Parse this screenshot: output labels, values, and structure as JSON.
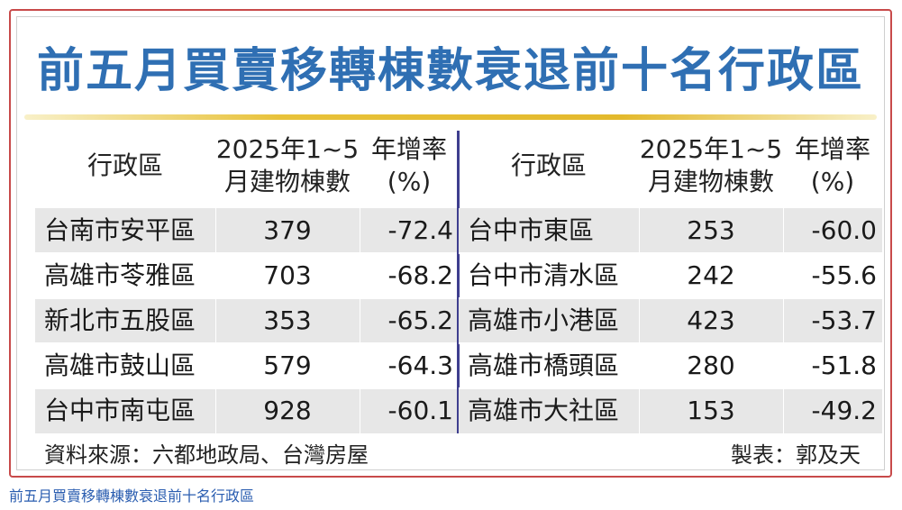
{
  "title": "前五月買賣移轉棟數衰退前十名行政區",
  "headers": {
    "district": "行政區",
    "count_line1": "2025年1~5",
    "count_line2": "月建物棟數",
    "rate_line1": "年增率",
    "rate_line2": "(%)"
  },
  "left_rows": [
    {
      "district": "台南市安平區",
      "count": "379",
      "rate": "-72.4"
    },
    {
      "district": "高雄市苓雅區",
      "count": "703",
      "rate": "-68.2"
    },
    {
      "district": "新北市五股區",
      "count": "353",
      "rate": "-65.2"
    },
    {
      "district": "高雄市鼓山區",
      "count": "579",
      "rate": "-64.3"
    },
    {
      "district": "台中市南屯區",
      "count": "928",
      "rate": "-60.1"
    }
  ],
  "right_rows": [
    {
      "district": "台中市東區",
      "count": "253",
      "rate": "-60.0"
    },
    {
      "district": "台中市清水區",
      "count": "242",
      "rate": "-55.6"
    },
    {
      "district": "高雄市小港區",
      "count": "423",
      "rate": "-53.7"
    },
    {
      "district": "高雄市橋頭區",
      "count": "280",
      "rate": "-51.8"
    },
    {
      "district": "高雄市大社區",
      "count": "153",
      "rate": "-49.2"
    }
  ],
  "footer": {
    "source": "資料來源：六都地政局、台灣房屋",
    "maker": "製表：郭及天"
  },
  "caption": "前五月買賣移轉棟數衰退前十名行政區",
  "colors": {
    "title": "#2f6fb3",
    "frame": "#c84a4a",
    "divider": "#3f3f8f",
    "row_shade": "#e7e7e7",
    "gold": "#e3b92c",
    "caption": "#2a5db0"
  }
}
